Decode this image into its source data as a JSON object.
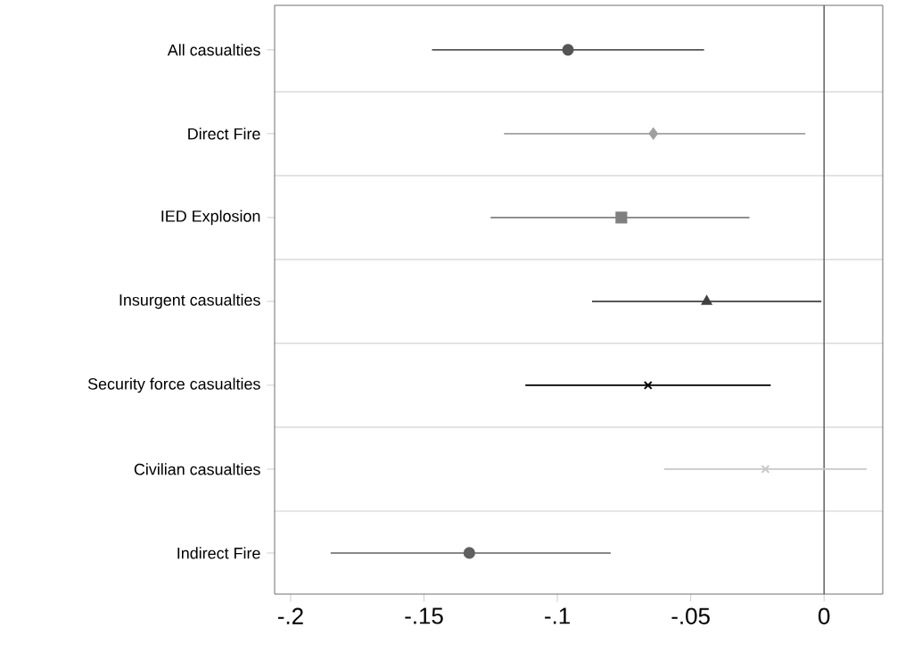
{
  "chart_data": {
    "type": "scatter",
    "orientation": "horizontal",
    "categories": [
      "All casualties",
      "Direct Fire",
      "IED Explosion",
      "Insurgent casualties",
      "Security force casualties",
      "Civilian casualties",
      "Indirect Fire"
    ],
    "series": [
      {
        "color": "#555555",
        "marker": "circle",
        "values": [
          -0.096,
          null,
          null,
          null,
          null,
          null,
          null
        ],
        "errors": [
          [
            -0.147,
            -0.045
          ],
          null,
          null,
          null,
          null,
          null,
          null
        ]
      },
      {
        "color": "#a0a0a0",
        "marker": "diamond",
        "values": [
          null,
          -0.064,
          null,
          null,
          null,
          null,
          null
        ],
        "errors": [
          null,
          [
            -0.12,
            -0.007
          ],
          null,
          null,
          null,
          null,
          null
        ]
      },
      {
        "color": "#808080",
        "marker": "square",
        "values": [
          null,
          null,
          -0.076,
          null,
          null,
          null,
          null
        ],
        "errors": [
          null,
          null,
          [
            -0.125,
            -0.028
          ],
          null,
          null,
          null,
          null
        ]
      },
      {
        "color": "#404040",
        "marker": "triangle",
        "values": [
          null,
          null,
          null,
          -0.044,
          null,
          null,
          null
        ],
        "errors": [
          null,
          null,
          null,
          [
            -0.087,
            -0.001
          ],
          null,
          null,
          null
        ]
      },
      {
        "color": "#000000",
        "marker": "cross",
        "values": [
          null,
          null,
          null,
          null,
          -0.066,
          null,
          null
        ],
        "errors": [
          null,
          null,
          null,
          null,
          [
            -0.112,
            -0.02
          ],
          null,
          null
        ]
      },
      {
        "color": "#c8c8c8",
        "marker": "cross",
        "values": [
          null,
          null,
          null,
          null,
          null,
          -0.022,
          null
        ],
        "errors": [
          null,
          null,
          null,
          null,
          null,
          [
            -0.06,
            0.016
          ],
          null
        ]
      },
      {
        "color": "#606060",
        "marker": "circle",
        "values": [
          null,
          null,
          null,
          null,
          null,
          null,
          -0.133
        ],
        "errors": [
          null,
          null,
          null,
          null,
          null,
          null,
          [
            -0.185,
            -0.08
          ]
        ]
      }
    ],
    "xlim": [
      -0.206,
      0.022
    ],
    "xticks": [
      {
        "value": -0.2,
        "label": "-.2"
      },
      {
        "value": -0.15,
        "label": "-.15"
      },
      {
        "value": -0.1,
        "label": "-.1"
      },
      {
        "value": -0.05,
        "label": "-.05"
      },
      {
        "value": 0,
        "label": "0"
      }
    ],
    "grid": "y",
    "ref_lines": [
      {
        "axis": "x",
        "value": 0,
        "color": "#555555"
      }
    ]
  }
}
